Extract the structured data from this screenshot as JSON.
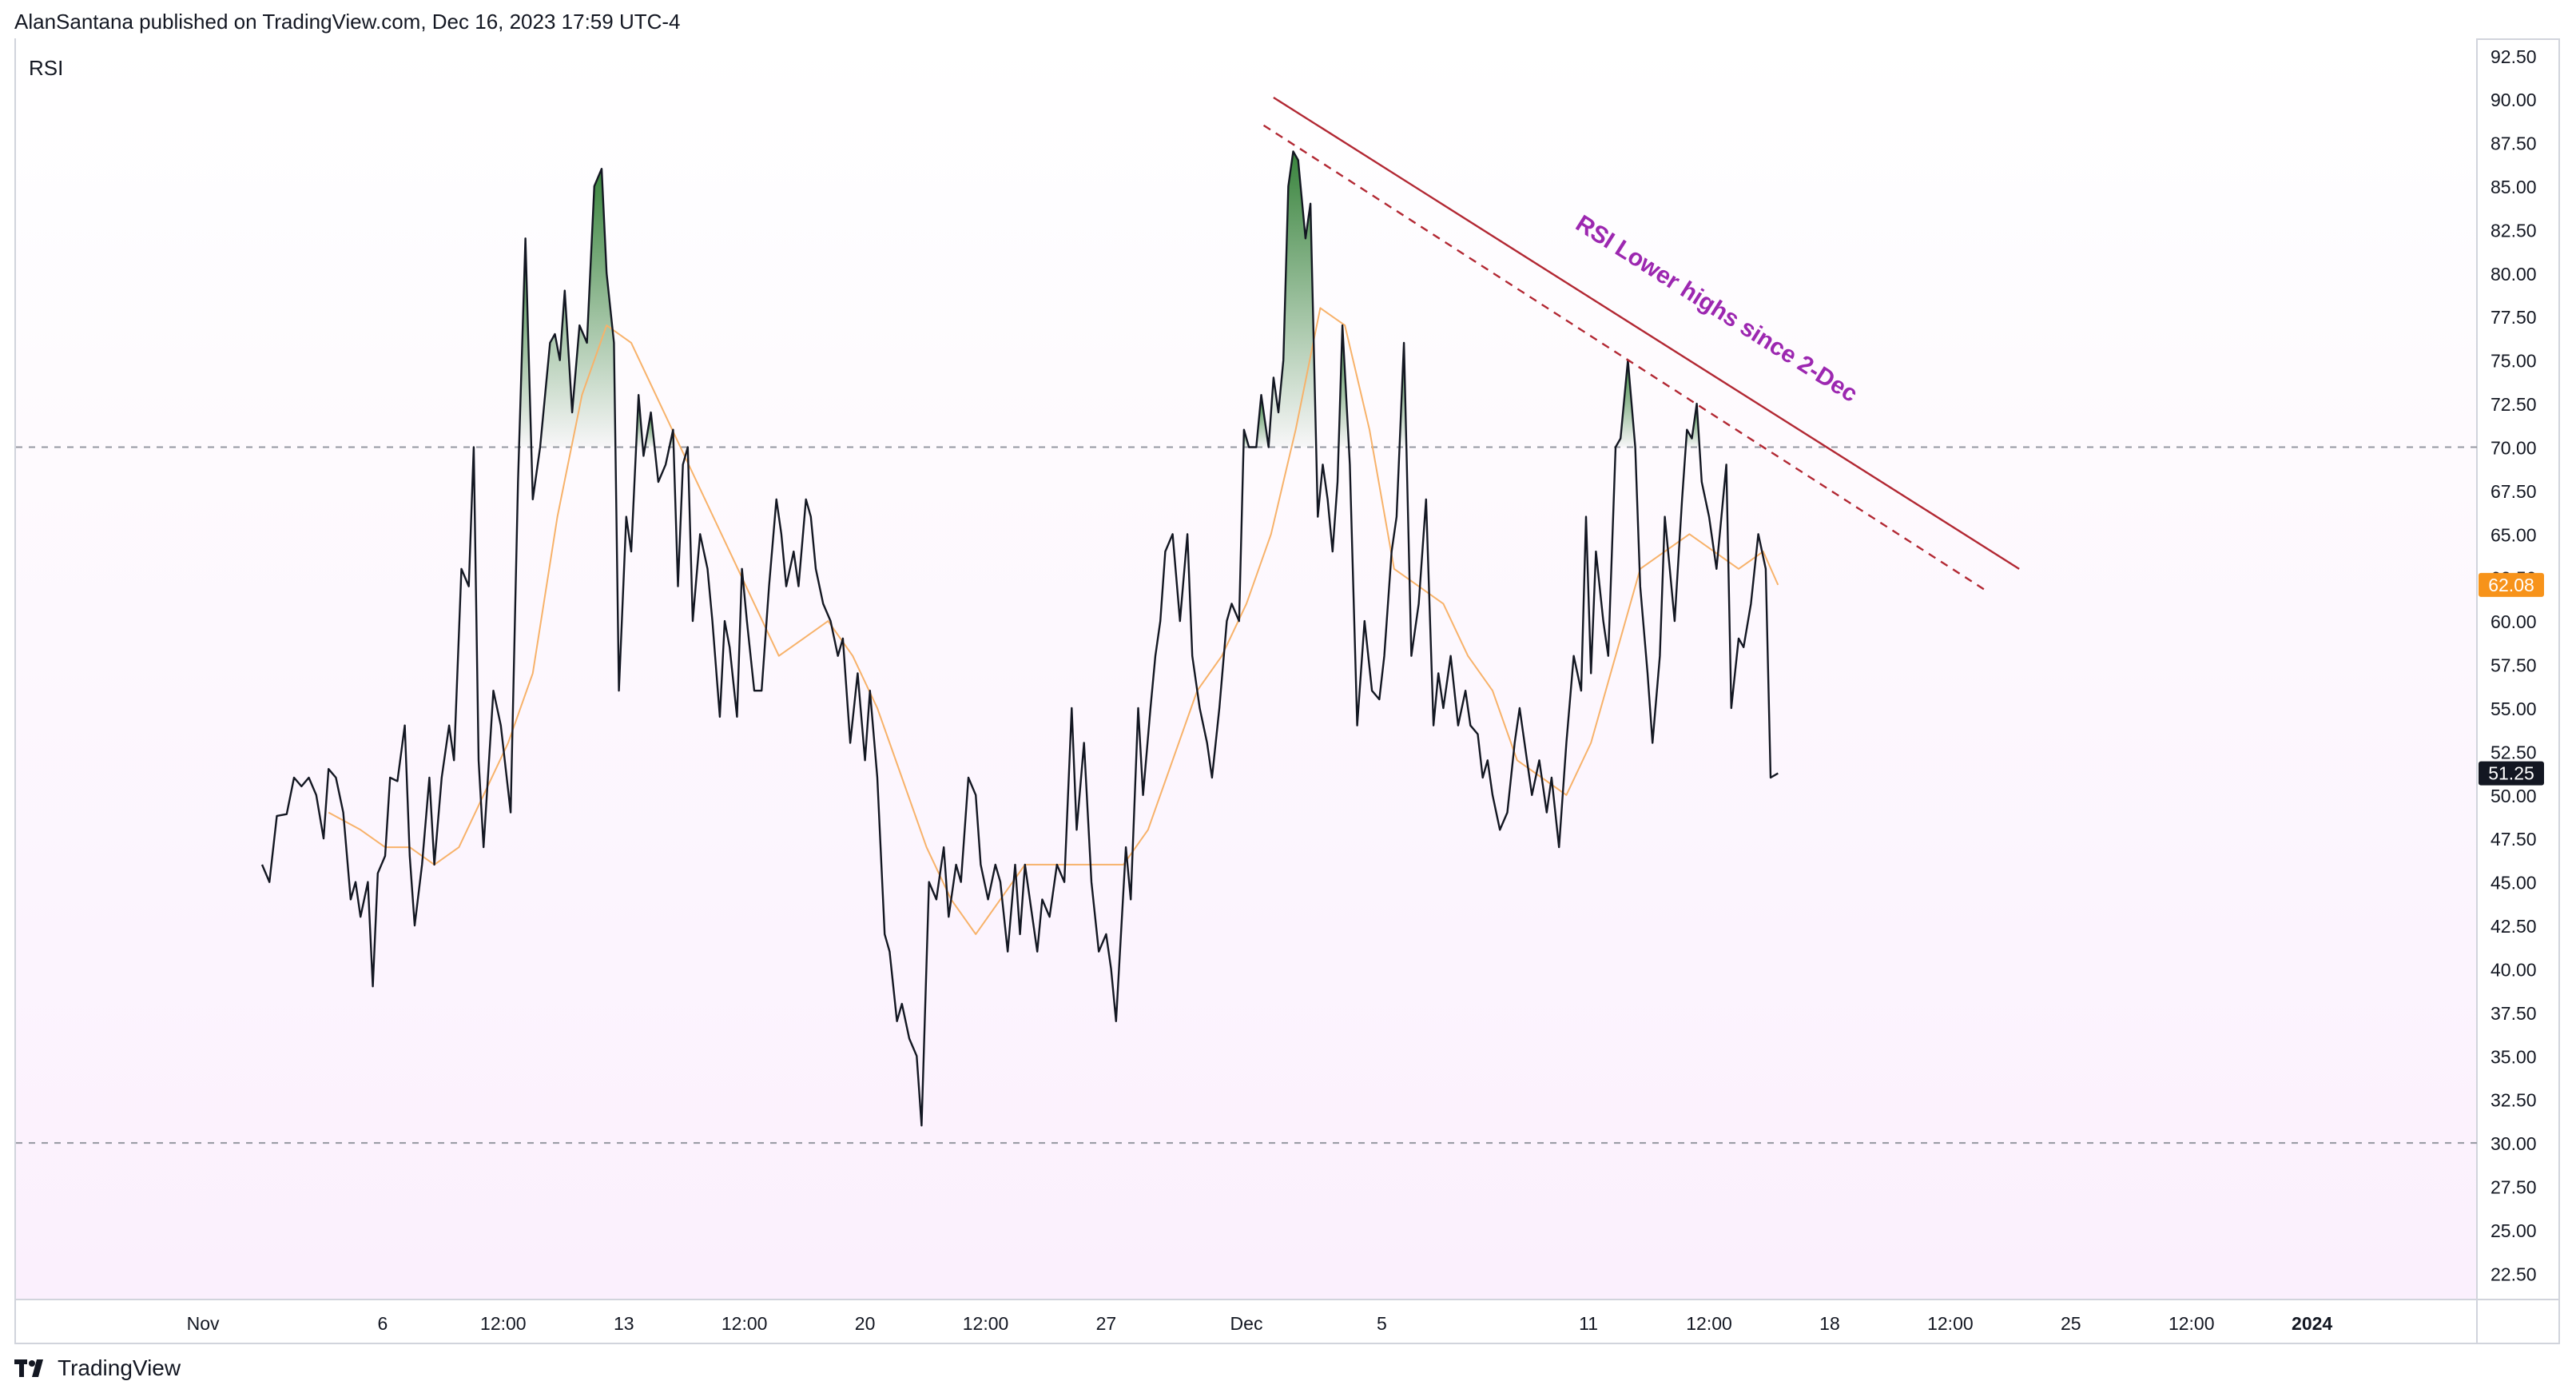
{
  "publisher_line": "AlanSantana published on TradingView.com, Dec 16, 2023 17:59 UTC-4",
  "indicator_label": "RSI",
  "brand": "TradingView",
  "colors": {
    "rsi_line": "#131722",
    "rsi_ma": "#f7b26a",
    "overbought_fill": "#2e7d32",
    "band_bg": "#fbf0fd",
    "trendline": "#b22833",
    "annotation": "#9c27b0",
    "badge_ma": "#f7931a",
    "badge_rsi": "#131722"
  },
  "annotation_text": "RSI Lower highs since 2-Dec",
  "chart_data": {
    "type": "line",
    "title": "RSI",
    "x_domain": [
      0,
      1000
    ],
    "ylim": [
      21,
      93.5
    ],
    "y_ticks": [
      22.5,
      25,
      27.5,
      30,
      32.5,
      35,
      37.5,
      40,
      42.5,
      45,
      47.5,
      50,
      52.5,
      55,
      57.5,
      60,
      62.5,
      65,
      67.5,
      70,
      72.5,
      75,
      77.5,
      80,
      82.5,
      85,
      87.5,
      90,
      92.5
    ],
    "x_ticks": [
      {
        "label": "Nov",
        "x": 76
      },
      {
        "label": "6",
        "x": 149
      },
      {
        "label": "12:00",
        "x": 198
      },
      {
        "label": "13",
        "x": 247
      },
      {
        "label": "12:00",
        "x": 296
      },
      {
        "label": "20",
        "x": 345
      },
      {
        "label": "12:00",
        "x": 394
      },
      {
        "label": "27",
        "x": 443
      },
      {
        "label": "Dec",
        "x": 500
      },
      {
        "label": "5",
        "x": 555
      },
      {
        "label": "11",
        "x": 639
      },
      {
        "label": "12:00",
        "x": 688
      },
      {
        "label": "18",
        "x": 737
      },
      {
        "label": "12:00",
        "x": 786
      },
      {
        "label": "25",
        "x": 835
      },
      {
        "label": "12:00",
        "x": 884
      },
      {
        "label": "2024",
        "x": 933
      }
    ],
    "levels": {
      "overbought": 70,
      "oversold": 30
    },
    "current": {
      "rsi": 51.25,
      "rsi_label": "51.25",
      "ma": 62.08,
      "ma_label": "62.08"
    },
    "series": [
      {
        "name": "RSI",
        "points": [
          [
            100,
            46
          ],
          [
            103,
            45
          ],
          [
            106,
            48.8
          ],
          [
            110,
            48.9
          ],
          [
            113,
            51
          ],
          [
            116,
            50.5
          ],
          [
            119,
            51
          ],
          [
            122,
            50
          ],
          [
            125,
            47.5
          ],
          [
            127,
            51.5
          ],
          [
            130,
            51
          ],
          [
            133,
            49
          ],
          [
            136,
            44
          ],
          [
            138,
            45
          ],
          [
            140,
            43
          ],
          [
            143,
            45
          ],
          [
            145,
            39
          ],
          [
            147,
            45.5
          ],
          [
            150,
            46.5
          ],
          [
            152,
            51
          ],
          [
            155,
            50.8
          ],
          [
            158,
            54
          ],
          [
            160,
            46.5
          ],
          [
            162,
            42.5
          ],
          [
            165,
            46
          ],
          [
            168,
            51
          ],
          [
            170,
            46
          ],
          [
            173,
            51
          ],
          [
            176,
            54
          ],
          [
            178,
            52
          ],
          [
            181,
            63
          ],
          [
            184,
            62
          ],
          [
            186,
            70
          ],
          [
            188,
            52
          ],
          [
            190,
            47
          ],
          [
            194,
            56
          ],
          [
            197,
            54
          ],
          [
            201,
            49
          ],
          [
            204,
            68
          ],
          [
            207,
            82
          ],
          [
            210,
            67
          ],
          [
            213,
            70
          ],
          [
            217,
            76
          ],
          [
            219,
            76.5
          ],
          [
            221,
            75
          ],
          [
            223,
            79
          ],
          [
            226,
            72
          ],
          [
            229,
            77
          ],
          [
            232,
            76
          ],
          [
            235,
            85
          ],
          [
            238,
            86
          ],
          [
            240,
            80
          ],
          [
            243,
            76
          ],
          [
            245,
            56
          ],
          [
            248,
            66
          ],
          [
            250,
            64
          ],
          [
            253,
            73
          ],
          [
            255,
            69.5
          ],
          [
            258,
            72
          ],
          [
            261,
            68
          ],
          [
            264,
            69
          ],
          [
            267,
            71
          ],
          [
            269,
            62
          ],
          [
            271,
            69
          ],
          [
            273,
            70
          ],
          [
            275,
            60
          ],
          [
            278,
            65
          ],
          [
            281,
            63
          ],
          [
            283,
            60
          ],
          [
            286,
            54.5
          ],
          [
            288,
            60
          ],
          [
            290,
            58.5
          ],
          [
            293,
            54.5
          ],
          [
            295,
            63
          ],
          [
            297,
            60
          ],
          [
            300,
            56
          ],
          [
            303,
            56
          ],
          [
            306,
            62
          ],
          [
            309,
            67
          ],
          [
            311,
            65
          ],
          [
            313,
            62
          ],
          [
            316,
            64
          ],
          [
            318,
            62
          ],
          [
            321,
            67
          ],
          [
            323,
            66
          ],
          [
            325,
            63
          ],
          [
            328,
            61
          ],
          [
            331,
            60
          ],
          [
            334,
            58
          ],
          [
            336,
            59
          ],
          [
            339,
            53
          ],
          [
            342,
            57
          ],
          [
            345,
            52
          ],
          [
            347,
            56
          ],
          [
            350,
            51
          ],
          [
            353,
            42
          ],
          [
            355,
            41
          ],
          [
            358,
            37
          ],
          [
            360,
            38
          ],
          [
            363,
            36
          ],
          [
            366,
            35
          ],
          [
            368,
            31
          ],
          [
            371,
            45
          ],
          [
            374,
            44
          ],
          [
            377,
            47
          ],
          [
            379,
            43
          ],
          [
            382,
            46
          ],
          [
            384,
            45
          ],
          [
            387,
            51
          ],
          [
            390,
            50
          ],
          [
            392,
            46
          ],
          [
            395,
            44
          ],
          [
            398,
            46
          ],
          [
            400,
            45
          ],
          [
            403,
            41
          ],
          [
            406,
            46
          ],
          [
            408,
            42
          ],
          [
            410,
            46
          ],
          [
            413,
            43
          ],
          [
            415,
            41
          ],
          [
            417,
            44
          ],
          [
            420,
            43
          ],
          [
            423,
            46
          ],
          [
            426,
            45
          ],
          [
            429,
            55
          ],
          [
            431,
            48
          ],
          [
            434,
            53
          ],
          [
            437,
            45
          ],
          [
            440,
            41
          ],
          [
            443,
            42
          ],
          [
            445,
            40
          ],
          [
            447,
            37
          ],
          [
            451,
            47
          ],
          [
            453,
            44
          ],
          [
            456,
            55
          ],
          [
            458,
            50
          ],
          [
            461,
            55
          ],
          [
            463,
            58
          ],
          [
            465,
            60
          ],
          [
            467,
            64
          ],
          [
            470,
            65
          ],
          [
            473,
            60
          ],
          [
            476,
            65
          ],
          [
            478,
            58
          ],
          [
            481,
            55
          ],
          [
            484,
            53
          ],
          [
            486,
            51
          ],
          [
            489,
            55
          ],
          [
            492,
            60
          ],
          [
            494,
            61
          ],
          [
            497,
            60
          ],
          [
            499,
            71
          ],
          [
            501,
            70
          ],
          [
            504,
            70
          ],
          [
            506,
            73
          ],
          [
            509,
            70
          ],
          [
            511,
            74
          ],
          [
            513,
            72
          ],
          [
            515,
            75
          ],
          [
            517,
            85
          ],
          [
            519,
            87
          ],
          [
            521,
            86.5
          ],
          [
            524,
            82
          ],
          [
            526,
            84
          ],
          [
            529,
            66
          ],
          [
            531,
            69
          ],
          [
            533,
            67
          ],
          [
            535,
            64
          ],
          [
            537,
            68
          ],
          [
            539,
            77
          ],
          [
            542,
            69
          ],
          [
            545,
            54
          ],
          [
            548,
            60
          ],
          [
            551,
            56
          ],
          [
            554,
            55.5
          ],
          [
            556,
            58
          ],
          [
            559,
            64
          ],
          [
            561,
            66
          ],
          [
            564,
            76
          ],
          [
            567,
            58
          ],
          [
            570,
            61
          ],
          [
            573,
            67
          ],
          [
            576,
            54
          ],
          [
            578,
            57
          ],
          [
            580,
            55
          ],
          [
            583,
            58
          ],
          [
            586,
            54
          ],
          [
            589,
            56
          ],
          [
            591,
            54
          ],
          [
            594,
            53.5
          ],
          [
            596,
            51
          ],
          [
            598,
            52
          ],
          [
            600,
            50
          ],
          [
            603,
            48
          ],
          [
            606,
            49
          ],
          [
            609,
            53
          ],
          [
            611,
            55
          ],
          [
            614,
            52
          ],
          [
            616,
            50
          ],
          [
            619,
            52
          ],
          [
            622,
            49
          ],
          [
            624,
            51
          ],
          [
            627,
            47
          ],
          [
            630,
            53
          ],
          [
            633,
            58
          ],
          [
            636,
            56
          ],
          [
            638,
            66
          ],
          [
            640,
            57
          ],
          [
            642,
            64
          ],
          [
            645,
            60
          ],
          [
            647,
            58
          ],
          [
            650,
            70
          ],
          [
            652,
            70.5
          ],
          [
            655,
            75
          ],
          [
            658,
            70
          ],
          [
            660,
            62
          ],
          [
            663,
            57
          ],
          [
            665,
            53
          ],
          [
            668,
            58
          ],
          [
            670,
            66
          ],
          [
            672,
            63
          ],
          [
            674,
            60
          ],
          [
            677,
            67
          ],
          [
            679,
            71
          ],
          [
            681,
            70.5
          ],
          [
            683,
            72.5
          ],
          [
            685,
            68
          ],
          [
            688,
            66
          ],
          [
            691,
            63
          ],
          [
            695,
            69
          ],
          [
            697,
            55
          ],
          [
            700,
            59
          ],
          [
            702,
            58.5
          ],
          [
            705,
            61
          ],
          [
            708,
            65
          ],
          [
            711,
            63
          ],
          [
            713,
            51
          ],
          [
            716,
            51.25
          ]
        ]
      },
      {
        "name": "RSI-based MA",
        "points": [
          [
            127,
            49
          ],
          [
            140,
            48
          ],
          [
            150,
            47
          ],
          [
            160,
            47
          ],
          [
            170,
            46
          ],
          [
            180,
            47
          ],
          [
            190,
            50
          ],
          [
            200,
            53
          ],
          [
            210,
            57
          ],
          [
            220,
            66
          ],
          [
            230,
            73
          ],
          [
            240,
            77
          ],
          [
            250,
            76
          ],
          [
            260,
            73
          ],
          [
            270,
            70
          ],
          [
            280,
            67
          ],
          [
            290,
            64
          ],
          [
            300,
            61
          ],
          [
            310,
            58
          ],
          [
            320,
            59
          ],
          [
            330,
            60
          ],
          [
            340,
            58
          ],
          [
            350,
            55
          ],
          [
            360,
            51
          ],
          [
            370,
            47
          ],
          [
            380,
            44
          ],
          [
            390,
            42
          ],
          [
            400,
            44
          ],
          [
            410,
            46
          ],
          [
            420,
            46
          ],
          [
            430,
            46
          ],
          [
            440,
            46
          ],
          [
            450,
            46
          ],
          [
            460,
            48
          ],
          [
            470,
            52
          ],
          [
            480,
            56
          ],
          [
            490,
            58
          ],
          [
            500,
            61
          ],
          [
            510,
            65
          ],
          [
            520,
            71
          ],
          [
            530,
            78
          ],
          [
            540,
            77
          ],
          [
            550,
            71
          ],
          [
            560,
            63
          ],
          [
            570,
            62
          ],
          [
            580,
            61
          ],
          [
            590,
            58
          ],
          [
            600,
            56
          ],
          [
            610,
            52
          ],
          [
            620,
            51
          ],
          [
            630,
            50
          ],
          [
            640,
            53
          ],
          [
            650,
            58
          ],
          [
            660,
            63
          ],
          [
            670,
            64
          ],
          [
            680,
            65
          ],
          [
            690,
            64
          ],
          [
            700,
            63
          ],
          [
            710,
            64
          ],
          [
            716,
            62.08
          ]
        ]
      }
    ],
    "annotation": "RSI Lower highs since 2-Dec",
    "trendlines": {
      "solid": [
        [
          511,
          90.1
        ],
        [
          814,
          63
        ]
      ],
      "dashed": [
        [
          507,
          88.5
        ],
        [
          800,
          61.8
        ]
      ]
    }
  }
}
